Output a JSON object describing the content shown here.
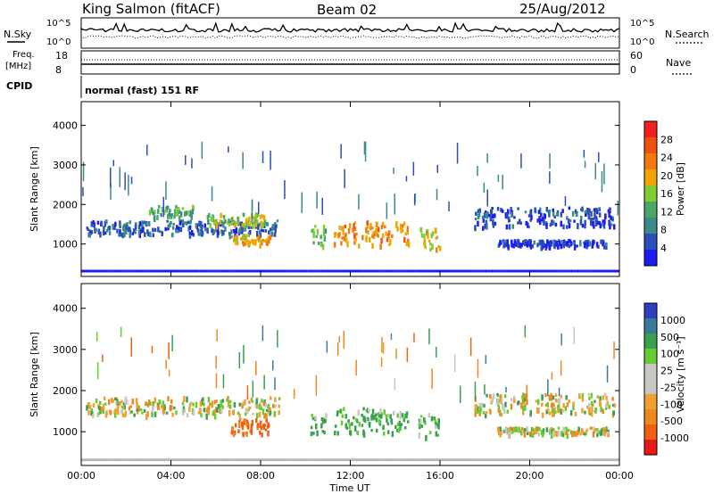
{
  "header": {
    "station": "King Salmon (fitACF)",
    "beam": "Beam 02",
    "date": "25/Aug/2012"
  },
  "panels": {
    "nsky_label": "N.Sky",
    "nsearch_label": "N.Search",
    "nsky_ticks": [
      "10^5",
      "10^0"
    ],
    "nsearch_ticks": [
      "10^5",
      "10^0"
    ],
    "freq_label": "Freq.",
    "freq_unit": "[MHz]",
    "freq_ticks": [
      "18",
      "8"
    ],
    "nave_label": "Nave",
    "nave_ticks": [
      "60",
      "0"
    ],
    "cpid_label": "CPID",
    "cpid_value": "normal (fast) 151 RF"
  },
  "colors": {
    "power_scale": [
      "#1c1cf0",
      "#2a4fb8",
      "#3c8a8a",
      "#4aa866",
      "#7fcc33",
      "#f2a500",
      "#f07a10",
      "#f05010",
      "#f02020"
    ],
    "velocity_scale": [
      "#e81818",
      "#f06010",
      "#f08820",
      "#f0a030",
      "#c8c8c0",
      "#c8c8c0",
      "#66cc33",
      "#3aa050",
      "#3a7a9a",
      "#2a40c0"
    ]
  },
  "chart_data": [
    {
      "type": "heatmap",
      "name_key": "power",
      "ylabel": "Slant Range [km]",
      "yticks": [
        "4000",
        "3000",
        "2000",
        "1000"
      ],
      "ylim": [
        180,
        4600
      ],
      "xlim": [
        0,
        24
      ],
      "colorbar_label": "Power [dB]",
      "colorbar_ticks": [
        "28",
        "24",
        "20",
        "16",
        "12",
        "8",
        "4"
      ],
      "blobs": [
        {
          "t0": 0.2,
          "t1": 8.8,
          "r": 1450,
          "dr": 180,
          "v": 6
        },
        {
          "t0": 3.0,
          "t1": 5.0,
          "r": 1850,
          "dr": 150,
          "v": 12
        },
        {
          "t0": 5.5,
          "t1": 8.2,
          "r": 1650,
          "dr": 150,
          "v": 16
        },
        {
          "t0": 6.6,
          "t1": 8.4,
          "r": 1150,
          "dr": 130,
          "v": 20
        },
        {
          "t0": 10.2,
          "t1": 10.9,
          "r": 1250,
          "dr": 250,
          "v": 14
        },
        {
          "t0": 11.2,
          "t1": 14.6,
          "r": 1300,
          "dr": 300,
          "v": 22
        },
        {
          "t0": 15.0,
          "t1": 16.0,
          "r": 1200,
          "dr": 300,
          "v": 18
        },
        {
          "t0": 17.5,
          "t1": 23.8,
          "r": 1700,
          "dr": 250,
          "v": 4
        },
        {
          "t0": 18.5,
          "t1": 23.5,
          "r": 1050,
          "dr": 80,
          "v": 4
        }
      ]
    },
    {
      "type": "heatmap",
      "name_key": "velocity",
      "ylabel": "Slant Range [km]",
      "yticks": [
        "4000",
        "3000",
        "2000",
        "1000"
      ],
      "ylim": [
        180,
        4600
      ],
      "xlim": [
        0,
        24
      ],
      "colorbar_label": "Velocity [m s⁻¹]",
      "colorbar_ticks": [
        "1000",
        "500",
        "100",
        "25",
        "-25",
        "-100",
        "-500",
        "-1000"
      ],
      "blobs": [
        {
          "t0": 0.2,
          "t1": 8.8,
          "r": 1650,
          "dr": 220,
          "v": 0
        },
        {
          "t0": 6.6,
          "t1": 8.4,
          "r": 1150,
          "dr": 200,
          "v": -600
        },
        {
          "t0": 10.2,
          "t1": 10.9,
          "r": 1250,
          "dr": 250,
          "v": 120
        },
        {
          "t0": 11.2,
          "t1": 14.6,
          "r": 1300,
          "dr": 300,
          "v": 160
        },
        {
          "t0": 15.0,
          "t1": 16.0,
          "r": 1200,
          "dr": 300,
          "v": 140
        },
        {
          "t0": 17.5,
          "t1": 23.8,
          "r": 1700,
          "dr": 250,
          "v": 0
        },
        {
          "t0": 18.5,
          "t1": 23.5,
          "r": 1050,
          "dr": 80,
          "v": 0
        }
      ]
    }
  ],
  "xaxis": {
    "label": "Time UT",
    "ticks": [
      "00:00",
      "04:00",
      "08:00",
      "12:00",
      "16:00",
      "20:00",
      "00:00"
    ]
  }
}
